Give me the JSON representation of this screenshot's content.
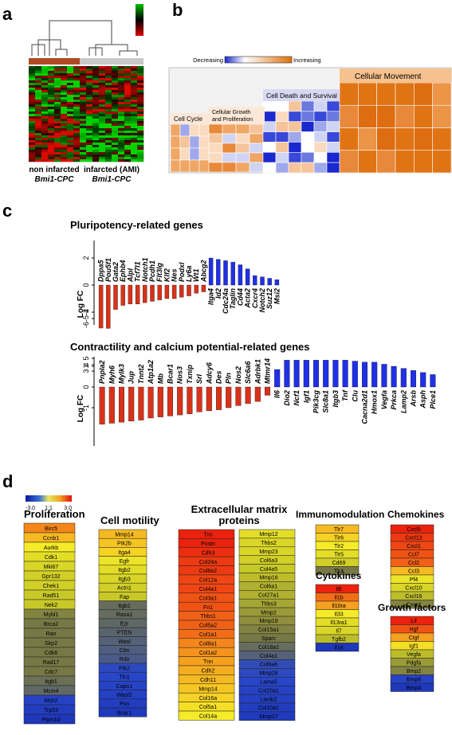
{
  "panels": {
    "a": {
      "letter": "a",
      "group_left": {
        "line1": "non infarcted",
        "line2": "Bmi1-CPC"
      },
      "group_right": {
        "line1": "infarcted (AMI)",
        "line2": "Bmi1-CPC"
      }
    },
    "b": {
      "letter": "b",
      "legend": {
        "decreasing": "Decreasing",
        "increasing": "Increasing",
        "min": "-2.076",
        "max": "5.043"
      },
      "categories": [
        "Cell Cycle",
        "Cellular Growth and Proliferation",
        "Cell Death and Survival",
        "Cellular Movement"
      ]
    },
    "c": {
      "letter": "c",
      "ylabel": "Log FC",
      "top_title": "Pluripotency-related genes",
      "bottom_title": "Contractility and calcium potential-related genes"
    },
    "d": {
      "letter": "d",
      "scale": {
        "min": "-3.0",
        "mid": "1:1",
        "max": "3.0"
      }
    }
  },
  "chart_data": [
    {
      "type": "bar",
      "title": "Pluripotency-related genes",
      "ylabel": "Log FC",
      "categories": [
        "Dppa5",
        "Pou5f1",
        "Gata2",
        "Ephb4",
        "Alpl",
        "Tcf7l1",
        "Notch1",
        "Pcdh1",
        "Flt3lg",
        "Klf2",
        "Nes",
        "Podxl",
        "Ly6a",
        "Wt1",
        "Abcg2",
        "Itga4",
        "Id2",
        "Cdc24a",
        "Taglin",
        "Cd44",
        "Acta2",
        "Cxcr4",
        "Notch2",
        "Suz12",
        "Msi2"
      ],
      "values": [
        -6.0,
        -3.2,
        -1.8,
        -1.5,
        -1.4,
        -1.4,
        -1.3,
        -1.2,
        -1.1,
        -1.0,
        -1.0,
        -0.9,
        -0.8,
        -0.6,
        -0.5,
        2.0,
        1.9,
        1.8,
        1.7,
        1.5,
        1.2,
        0.7,
        0.6,
        0.5,
        0.4
      ],
      "ylim": [
        -6,
        2
      ],
      "yticks": [
        "2",
        "0",
        "-2",
        "-6-5-4"
      ]
    },
    {
      "type": "bar",
      "title": "Contractility and calcium potential-related genes",
      "ylabel": "Log FC",
      "categories": [
        "Pnpla2",
        "Myh6",
        "Mylk3",
        "Jup",
        "Tnnt2",
        "Atp1a2",
        "Mb",
        "Bcar1",
        "Nos3",
        "Txnip",
        "Srl",
        "Adcy6",
        "Des",
        "Pln",
        "Nos2",
        "Slc6a6",
        "Adrbk1",
        "Mtmr14",
        "Il6",
        "Dio2",
        "Ncf1",
        "Igf1",
        "Pik3cg",
        "Slc8a1",
        "Itgb3",
        "Tnf",
        "Clu",
        "Cacna2d1",
        "Hmox1",
        "Vegfa",
        "Prkca",
        "Lamp2",
        "Arsb",
        "Asph",
        "Plce1"
      ],
      "values": [
        -1.8,
        -1.75,
        -1.7,
        -1.65,
        -1.6,
        -1.5,
        -1.45,
        -1.4,
        -1.35,
        -1.3,
        -1.2,
        -1.15,
        -1.1,
        -1.0,
        -0.9,
        -0.8,
        -0.7,
        -0.4,
        4.0,
        1.3,
        1.3,
        1.3,
        1.3,
        1.3,
        1.3,
        1.3,
        1.25,
        1.2,
        1.2,
        1.1,
        1.0,
        0.9,
        0.8,
        0.7,
        0.6
      ],
      "ylim": [
        -2,
        5
      ],
      "yticks": [
        "5",
        "4",
        "3",
        "1",
        "0",
        "-1"
      ]
    },
    {
      "type": "heatmap",
      "title": "Proliferation",
      "rows": [
        "Birc5",
        "Ccnb1",
        "Aurkb",
        "Cdk1",
        "Mki67",
        "Gpr132",
        "Chek1",
        "Rad51",
        "Nek2",
        "Mybl1",
        "Brca2",
        "Ran",
        "Skp2",
        "Cdk6",
        "Rad17",
        "Cdc7",
        "Itgb1",
        "Mcm4",
        "Msh2",
        "Trp53",
        "Ppm1d"
      ],
      "values": [
        2.0,
        1.6,
        1.2,
        1.0,
        0.9,
        0.8,
        0.8,
        0.7,
        0.7,
        0.1,
        0.0,
        0.0,
        0.0,
        0.0,
        0.0,
        0.0,
        -0.2,
        -0.4,
        -1.6,
        -1.8,
        -2.0
      ]
    },
    {
      "type": "heatmap",
      "title": "Cell motility",
      "rows": [
        "Mmp14",
        "Ptk2b",
        "Itga4",
        "Egfr",
        "Itgb2",
        "Itgb3",
        "Actn1",
        "Fap",
        "Itgb1",
        "Rasa1",
        "Ezr",
        "PTEN",
        "Wasl",
        "Cttn",
        "Rdx",
        "Ptk2",
        "Tln1",
        "Capn1",
        "Wasf2",
        "Pxn",
        "Bcar1"
      ],
      "values": [
        1.6,
        1.5,
        1.4,
        1.1,
        1.0,
        0.9,
        0.8,
        0.7,
        -0.3,
        -0.3,
        -0.4,
        -0.5,
        -0.6,
        -0.7,
        -0.8,
        -1.4,
        -1.5,
        -1.6,
        -1.7,
        -1.8,
        -1.9
      ]
    },
    {
      "type": "heatmap",
      "title": "Extracellular matrix proteins",
      "rows": [
        "Tnc",
        "Postn",
        "Cdh3",
        "Col24a",
        "Col8a2",
        "Col12a",
        "Col4a1",
        "Col3a1",
        "Fn1",
        "Thbs1",
        "Col5a2",
        "Col1a1",
        "Col8a1",
        "Col1a2",
        "Tnn",
        "Cdh2",
        "Cdh11",
        "Mmp14",
        "Col16a",
        "Col5a1",
        "Col14a"
      ],
      "values": [
        2.8,
        2.8,
        2.7,
        2.6,
        2.6,
        2.5,
        2.5,
        2.4,
        2.4,
        2.3,
        2.3,
        2.2,
        2.0,
        1.9,
        1.8,
        1.7,
        1.6,
        1.5,
        1.4,
        1.3,
        1.2
      ]
    },
    {
      "type": "heatmap",
      "title": "",
      "rows": [
        "Mmp12",
        "Thbs2",
        "Mmp23",
        "Col6a3",
        "Col4a5",
        "Mmp16",
        "Col6a1",
        "Col27a1",
        "Thbs3",
        "Mmp2",
        "Mmp19",
        "Col15a1",
        "Sparc",
        "Col18a1",
        "Col4a1",
        "Col6a6",
        "Mmp28",
        "Lama5",
        "Col20a1",
        "Lamb2",
        "Col10a1",
        "Mmp17"
      ],
      "values": [
        1.0,
        0.9,
        0.9,
        0.8,
        0.7,
        0.6,
        0.5,
        0.5,
        0.4,
        0.3,
        0.2,
        0.1,
        0.0,
        -0.3,
        -0.6,
        -1.3,
        -1.4,
        -1.5,
        -1.6,
        -1.7,
        -1.8,
        -1.9
      ]
    },
    {
      "type": "heatmap",
      "title": "Immunomodulation",
      "rows": [
        "Tlr7",
        "Tlr6",
        "Tlr2",
        "Tlr5",
        "Cd69",
        "Tlr4"
      ],
      "values": [
        1.6,
        1.4,
        1.2,
        1.0,
        0.8,
        0.0
      ]
    },
    {
      "type": "heatmap",
      "title": "Cytokines",
      "rows": [
        "Il6",
        "Il1b",
        "Il10ra",
        "Il33",
        "Il13ra1",
        "Il7",
        "Tgfb2",
        "Il16"
      ],
      "values": [
        2.8,
        2.2,
        1.8,
        1.2,
        1.0,
        0.9,
        0.6,
        -2.0
      ]
    },
    {
      "type": "heatmap",
      "title": "Chemokines",
      "rows": [
        "Cxcl5",
        "Cxcl13",
        "Cxcl1",
        "Ccl7",
        "Ccl2",
        "Ccl3",
        "Pf4",
        "Cxcl10",
        "Cxcl16",
        "Cxcr4"
      ],
      "values": [
        2.8,
        2.6,
        2.5,
        2.4,
        2.3,
        1.6,
        1.1,
        0.9,
        0.6,
        0.1
      ]
    },
    {
      "type": "heatmap",
      "title": "Growth factors",
      "rows": [
        "Lif",
        "Hgf",
        "Ctgf",
        "Igf1",
        "Vegfa",
        "Pdgfa",
        "Bmp2",
        "Bmp6",
        "Bmp4"
      ],
      "values": [
        2.8,
        2.4,
        1.8,
        1.3,
        0.6,
        0.3,
        0.1,
        -1.6,
        -2.0
      ]
    }
  ]
}
